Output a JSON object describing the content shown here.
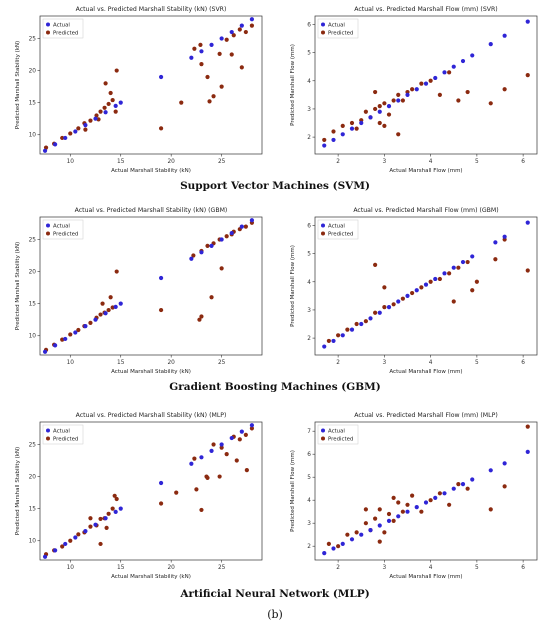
{
  "figure_label": "(b)",
  "row_captions": [
    "Support Vector Machines (SVM)",
    "Gradient Boosting Machines (GBM)",
    "Artificial Neural Network (MLP)"
  ],
  "colors": {
    "actual": "#2f25d6",
    "predicted": "#8b2a10"
  },
  "chart_data": [
    {
      "type": "scatter",
      "title": "Actual vs. Predicted Marshall Stability (kN) (SVR)",
      "xlabel": "Actual Marshall Stability (kN)",
      "ylabel": "Predicted Marshall Stability (kN)",
      "xlim": [
        7,
        29
      ],
      "ylim": [
        7,
        28.5
      ],
      "xticks": [
        10,
        15,
        20,
        25
      ],
      "yticks": [
        10,
        15,
        20,
        25
      ],
      "legend": "top-left",
      "series": [
        {
          "name": "Actual",
          "x": [
            7.5,
            8.5,
            9.5,
            10.5,
            11.5,
            12.5,
            13.5,
            14.5,
            15,
            19,
            22,
            23,
            24,
            25,
            26,
            27,
            28
          ],
          "y": [
            7.5,
            8.5,
            9.5,
            10.5,
            11.5,
            12.5,
            13.5,
            14.5,
            15,
            19,
            22,
            23,
            24,
            25,
            26,
            27,
            28
          ]
        },
        {
          "name": "Predicted",
          "x": [
            7.6,
            8.4,
            9.2,
            10,
            10.8,
            11.4,
            12,
            12.6,
            13,
            13.4,
            13.8,
            14.2,
            14.6,
            13.5,
            14,
            12.8,
            11.5,
            14.5,
            19,
            21,
            22.3,
            23,
            23.6,
            24.2,
            24.8,
            25.5,
            26.2,
            26.8,
            27.4,
            28,
            26,
            25,
            27,
            23.8,
            22.9
          ],
          "y": [
            8,
            8.6,
            9.5,
            10.2,
            11,
            11.8,
            12.2,
            13,
            13.6,
            14.2,
            14.8,
            15.4,
            20,
            18,
            16.5,
            12.4,
            10.8,
            13.6,
            11,
            15,
            23.4,
            21,
            19,
            16,
            22.6,
            24.8,
            25.5,
            26.4,
            26,
            27,
            22.5,
            17.5,
            20.5,
            15.2,
            24
          ]
        }
      ]
    },
    {
      "type": "scatter",
      "title": "Actual vs. Predicted Marshall Flow (mm) (SVR)",
      "xlabel": "Actual Marshall Flow (mm)",
      "ylabel": "Predicted Marshall Flow (mm)",
      "xlim": [
        1.5,
        6.3
      ],
      "ylim": [
        1.4,
        6.3
      ],
      "xticks": [
        2,
        3,
        4,
        5,
        6
      ],
      "yticks": [
        2,
        3,
        4,
        5,
        6
      ],
      "legend": "top-left",
      "series": [
        {
          "name": "Actual",
          "x": [
            1.7,
            1.9,
            2.1,
            2.3,
            2.5,
            2.7,
            2.9,
            3.1,
            3.3,
            3.5,
            3.7,
            3.9,
            4.1,
            4.3,
            4.5,
            4.7,
            4.9,
            5.3,
            5.6,
            6.1
          ],
          "y": [
            1.7,
            1.9,
            2.1,
            2.3,
            2.5,
            2.7,
            2.9,
            3.1,
            3.3,
            3.5,
            3.7,
            3.9,
            4.1,
            4.3,
            4.5,
            4.7,
            4.9,
            5.3,
            5.6,
            6.1
          ]
        },
        {
          "name": "Predicted",
          "x": [
            1.7,
            1.9,
            2.1,
            2.3,
            2.5,
            2.6,
            2.7,
            2.8,
            2.9,
            3.0,
            3.1,
            3.2,
            3.3,
            3.4,
            3.5,
            2.4,
            2.8,
            3.0,
            3.6,
            3.8,
            4.0,
            4.2,
            4.4,
            4.6,
            4.8,
            5.3,
            5.6,
            6.1,
            3.3,
            2.9
          ],
          "y": [
            1.9,
            2.2,
            2.4,
            2.5,
            2.6,
            2.9,
            2.7,
            3.0,
            3.1,
            3.2,
            2.8,
            3.3,
            3.5,
            3.3,
            3.6,
            2.3,
            3.6,
            2.4,
            3.7,
            3.9,
            4.0,
            3.5,
            4.3,
            3.3,
            3.6,
            3.2,
            3.7,
            4.2,
            2.1,
            2.5
          ]
        }
      ]
    },
    {
      "type": "scatter",
      "title": "Actual vs. Predicted Marshall Stability (kN) (GBM)",
      "xlabel": "Actual Marshall Stability (kN)",
      "ylabel": "Predicted Marshall Stability (kN)",
      "xlim": [
        7,
        29
      ],
      "ylim": [
        7,
        28.5
      ],
      "xticks": [
        10,
        15,
        20,
        25
      ],
      "yticks": [
        10,
        15,
        20,
        25
      ],
      "legend": "top-left",
      "series": [
        {
          "name": "Actual",
          "x": [
            7.5,
            8.5,
            9.5,
            10.5,
            11.5,
            12.5,
            13.5,
            14.5,
            15,
            19,
            22,
            23,
            24,
            25,
            26,
            27,
            28
          ],
          "y": [
            7.5,
            8.5,
            9.5,
            10.5,
            11.5,
            12.5,
            13.5,
            14.5,
            15,
            19,
            22,
            23,
            24,
            25,
            26,
            27,
            28
          ]
        },
        {
          "name": "Predicted",
          "x": [
            7.6,
            8.4,
            9.2,
            10,
            10.8,
            11.4,
            12,
            12.6,
            13,
            13.4,
            13.8,
            14.2,
            14.6,
            14,
            13.2,
            19,
            22.2,
            23,
            23.6,
            24.2,
            24.8,
            25.5,
            26.2,
            26.8,
            27.4,
            28,
            23,
            22.8,
            24,
            25,
            26
          ],
          "y": [
            7.8,
            8.6,
            9.4,
            10.2,
            10.9,
            11.5,
            12,
            12.8,
            13.3,
            13.6,
            14,
            14.4,
            20,
            16,
            15,
            14,
            22.5,
            23.2,
            24,
            24.4,
            25,
            25.5,
            26.2,
            26.6,
            27,
            27.6,
            13,
            12.5,
            16,
            20.5,
            25.8
          ]
        }
      ]
    },
    {
      "type": "scatter",
      "title": "Actual vs. Predicted Marshall Flow (mm) (GBM)",
      "xlabel": "Actual Marshall Flow (mm)",
      "ylabel": "Predicted Marshall Flow (mm)",
      "xlim": [
        1.5,
        6.3
      ],
      "ylim": [
        1.4,
        6.3
      ],
      "xticks": [
        2,
        3,
        4,
        5,
        6
      ],
      "yticks": [
        2,
        3,
        4,
        5,
        6
      ],
      "legend": "top-left",
      "series": [
        {
          "name": "Actual",
          "x": [
            1.7,
            1.9,
            2.1,
            2.3,
            2.5,
            2.7,
            2.9,
            3.1,
            3.3,
            3.5,
            3.7,
            3.9,
            4.1,
            4.3,
            4.5,
            4.7,
            4.9,
            5.4,
            5.6,
            6.1
          ],
          "y": [
            1.7,
            1.9,
            2.1,
            2.3,
            2.5,
            2.7,
            2.9,
            3.1,
            3.3,
            3.5,
            3.7,
            3.9,
            4.1,
            4.3,
            4.5,
            4.7,
            4.9,
            5.4,
            5.6,
            6.1
          ]
        },
        {
          "name": "Predicted",
          "x": [
            1.8,
            2.0,
            2.2,
            2.4,
            2.6,
            2.8,
            3.0,
            3.2,
            3.4,
            3.6,
            3.8,
            4.0,
            4.2,
            4.4,
            4.6,
            4.8,
            5.0,
            5.4,
            5.6,
            6.1,
            2.8,
            3.0,
            4.5,
            4.9
          ],
          "y": [
            1.9,
            2.1,
            2.3,
            2.5,
            2.6,
            2.9,
            3.1,
            3.2,
            3.4,
            3.6,
            3.8,
            4.0,
            4.1,
            4.3,
            4.5,
            4.7,
            4.0,
            4.8,
            5.5,
            4.4,
            4.6,
            3.8,
            3.3,
            3.7
          ]
        }
      ]
    },
    {
      "type": "scatter",
      "title": "Actual vs. Predicted Marshall Stability (kN) (MLP)",
      "xlabel": "Actual Marshall Stability (kN)",
      "ylabel": "Predicted Marshall Stability (kN)",
      "xlim": [
        7,
        29
      ],
      "ylim": [
        7,
        28.5
      ],
      "xticks": [
        10,
        15,
        20,
        25
      ],
      "yticks": [
        10,
        15,
        20,
        25
      ],
      "legend": "top-left",
      "series": [
        {
          "name": "Actual",
          "x": [
            7.5,
            8.5,
            9.5,
            10.5,
            11.5,
            12.5,
            13.5,
            14.5,
            15,
            19,
            22,
            23,
            24,
            25,
            26,
            27,
            28
          ],
          "y": [
            7.5,
            8.5,
            9.5,
            10.5,
            11.5,
            12.5,
            13.5,
            14.5,
            15,
            19,
            22,
            23,
            24,
            25,
            26,
            27,
            28
          ]
        },
        {
          "name": "Predicted",
          "x": [
            7.6,
            8.4,
            9.2,
            10,
            10.8,
            11.4,
            12,
            12.6,
            13,
            13.4,
            13.8,
            14.2,
            14.6,
            13,
            13.6,
            14.4,
            12,
            19,
            20.5,
            22.3,
            23,
            23.6,
            24.2,
            24.8,
            25.5,
            26.2,
            26.8,
            27.4,
            28,
            22.5,
            23.5,
            25,
            26.5,
            27.5
          ],
          "y": [
            7.9,
            8.5,
            9.1,
            10,
            11,
            11.3,
            12.2,
            12.4,
            13.4,
            13.5,
            14.2,
            15,
            16.5,
            9.5,
            12,
            17,
            13.5,
            15.8,
            17.5,
            22.8,
            14.8,
            19.8,
            25,
            20,
            23.5,
            26.2,
            25.8,
            26.5,
            27.5,
            18,
            20,
            24.5,
            22.5,
            21
          ]
        }
      ]
    },
    {
      "type": "scatter",
      "title": "Actual vs. Predicted Marshall Flow (mm) (MLP)",
      "xlabel": "Actual Marshall Flow (mm)",
      "ylabel": "Predicted Marshall Flow (mm)",
      "xlim": [
        1.5,
        6.3
      ],
      "ylim": [
        1.4,
        7.4
      ],
      "xticks": [
        2,
        3,
        4,
        5,
        6
      ],
      "yticks": [
        2,
        3,
        4,
        5,
        6,
        7
      ],
      "legend": "top-left",
      "series": [
        {
          "name": "Actual",
          "x": [
            1.7,
            1.9,
            2.1,
            2.3,
            2.5,
            2.7,
            2.9,
            3.1,
            3.3,
            3.5,
            3.7,
            3.9,
            4.1,
            4.3,
            4.5,
            4.7,
            4.9,
            5.3,
            5.6,
            6.1
          ],
          "y": [
            1.7,
            1.9,
            2.1,
            2.3,
            2.5,
            2.7,
            2.9,
            3.1,
            3.3,
            3.5,
            3.7,
            3.9,
            4.1,
            4.3,
            4.5,
            4.7,
            4.9,
            5.3,
            5.6,
            6.1
          ]
        },
        {
          "name": "Predicted",
          "x": [
            1.8,
            2.0,
            2.2,
            2.4,
            2.6,
            2.7,
            2.8,
            2.9,
            3.0,
            3.1,
            3.2,
            3.3,
            3.4,
            3.5,
            3.6,
            3.8,
            4.0,
            4.2,
            4.4,
            4.6,
            4.8,
            5.3,
            5.6,
            6.1,
            2.9,
            3.2,
            2.6
          ],
          "y": [
            2.1,
            2.0,
            2.5,
            2.6,
            3.0,
            2.7,
            3.2,
            3.6,
            2.6,
            3.4,
            3.1,
            3.9,
            3.5,
            3.8,
            4.2,
            3.5,
            4.0,
            4.3,
            3.8,
            4.7,
            4.5,
            3.6,
            4.6,
            7.2,
            2.2,
            4.1,
            3.6
          ]
        }
      ]
    }
  ]
}
